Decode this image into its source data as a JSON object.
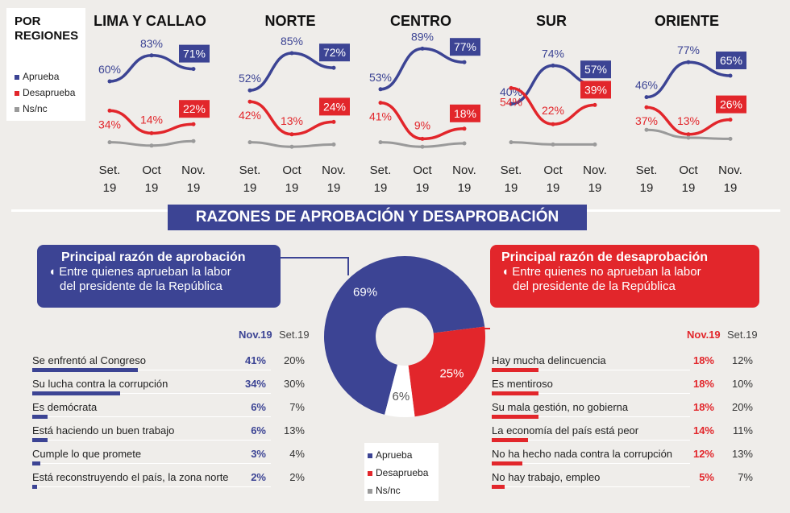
{
  "legend": {
    "title_line1": "POR",
    "title_line2": "REGIONES",
    "items": [
      {
        "label": "Aprueba",
        "color": "#3c4494"
      },
      {
        "label": "Desaprueba",
        "color": "#e2262b"
      },
      {
        "label": "Ns/nc",
        "color": "#9a9a9a"
      }
    ]
  },
  "x_labels": [
    {
      "line1": "Set.",
      "line2": "19"
    },
    {
      "line1": "Oct",
      "line2": "19"
    },
    {
      "line1": "Nov.",
      "line2": "19"
    }
  ],
  "chart_data": [
    {
      "type": "line",
      "title": "LIMA Y CALLAO",
      "categories": [
        "Set. 19",
        "Oct 19",
        "Nov. 19"
      ],
      "series": [
        {
          "name": "Aprueba",
          "values": [
            60,
            83,
            71
          ],
          "labels": [
            "60%",
            "83%",
            "71%"
          ]
        },
        {
          "name": "Desaprueba",
          "values": [
            34,
            14,
            22
          ],
          "labels": [
            "34%",
            "14%",
            "22%"
          ]
        },
        {
          "name": "Ns/nc",
          "values": [
            6,
            3,
            7
          ]
        }
      ]
    },
    {
      "type": "line",
      "title": "NORTE",
      "categories": [
        "Set. 19",
        "Oct 19",
        "Nov. 19"
      ],
      "series": [
        {
          "name": "Aprueba",
          "values": [
            52,
            85,
            72
          ],
          "labels": [
            "52%",
            "85%",
            "72%"
          ]
        },
        {
          "name": "Desaprueba",
          "values": [
            42,
            13,
            24
          ],
          "labels": [
            "42%",
            "13%",
            "24%"
          ]
        },
        {
          "name": "Ns/nc",
          "values": [
            6,
            2,
            4
          ]
        }
      ]
    },
    {
      "type": "line",
      "title": "CENTRO",
      "categories": [
        "Set. 19",
        "Oct 19",
        "Nov. 19"
      ],
      "series": [
        {
          "name": "Aprueba",
          "values": [
            53,
            89,
            77
          ],
          "labels": [
            "53%",
            "89%",
            "77%"
          ]
        },
        {
          "name": "Desaprueba",
          "values": [
            41,
            9,
            18
          ],
          "labels": [
            "41%",
            "9%",
            "18%"
          ]
        },
        {
          "name": "Ns/nc",
          "values": [
            6,
            2,
            5
          ]
        }
      ]
    },
    {
      "type": "line",
      "title": "SUR",
      "categories": [
        "Set. 19",
        "Oct 19",
        "Nov. 19"
      ],
      "series": [
        {
          "name": "Aprueba",
          "values": [
            40,
            74,
            57
          ],
          "labels": [
            "40%",
            "74%",
            "57%"
          ]
        },
        {
          "name": "Desaprueba",
          "values": [
            54,
            22,
            39
          ],
          "labels": [
            "54%",
            "22%",
            "39%"
          ]
        },
        {
          "name": "Ns/nc",
          "values": [
            6,
            4,
            4
          ]
        }
      ]
    },
    {
      "type": "line",
      "title": "ORIENTE",
      "categories": [
        "Set. 19",
        "Oct 19",
        "Nov. 19"
      ],
      "series": [
        {
          "name": "Aprueba",
          "values": [
            46,
            77,
            65
          ],
          "labels": [
            "46%",
            "77%",
            "65%"
          ]
        },
        {
          "name": "Desaprueba",
          "values": [
            37,
            13,
            26
          ],
          "labels": [
            "37%",
            "13%",
            "26%"
          ]
        },
        {
          "name": "Ns/nc",
          "values": [
            17,
            10,
            9
          ]
        }
      ]
    },
    {
      "type": "pie",
      "title": "",
      "slices": [
        {
          "name": "Aprueba",
          "value": 69,
          "label": "69%",
          "color": "#3c4494"
        },
        {
          "name": "Desaprueba",
          "value": 25,
          "label": "25%",
          "color": "#e2262b"
        },
        {
          "name": "Ns/nc",
          "value": 6,
          "label": "6%",
          "color": "#ffffff"
        }
      ]
    },
    {
      "type": "bar",
      "title": "Principal razón de aprobación",
      "series": [
        {
          "name": "Nov.19",
          "values": [
            41,
            34,
            6,
            6,
            3,
            2
          ]
        },
        {
          "name": "Set.19",
          "values": [
            20,
            30,
            7,
            13,
            4,
            2
          ]
        }
      ],
      "categories": [
        "Se enfrentó al Congreso",
        "Su lucha contra la corrupción",
        "Es demócrata",
        "Está haciendo un buen trabajo",
        "Cumple lo que promete",
        "Está reconstruyendo el país, la zona norte"
      ]
    },
    {
      "type": "bar",
      "title": "Principal razón de desaprobación",
      "series": [
        {
          "name": "Nov.19",
          "values": [
            18,
            18,
            18,
            14,
            12,
            5
          ]
        },
        {
          "name": "Set.19",
          "values": [
            12,
            10,
            20,
            11,
            13,
            7
          ]
        }
      ],
      "categories": [
        "Hay mucha delincuencia",
        "Es mentiroso",
        "Su mala gestión, no gobierna",
        "La economía del país está peor",
        "No ha hecho nada contra la corrupción",
        "No hay trabajo, empleo"
      ]
    }
  ],
  "banner": "RAZONES DE APROBACIÓN Y DESAPROBACIÓN",
  "approval": {
    "heading": "Principal razón de aprobación",
    "sub_line1": "Entre quienes aprueban la labor",
    "sub_line2": "del presidente de la República",
    "col_nov": "Nov.19",
    "col_set": "Set.19",
    "rows": [
      {
        "label": "Se enfrentó al Congreso",
        "nov": "41%",
        "set": "20%",
        "value": 41
      },
      {
        "label": "Su lucha contra la corrupción",
        "nov": "34%",
        "set": "30%",
        "value": 34
      },
      {
        "label": "Es demócrata",
        "nov": "6%",
        "set": "7%",
        "value": 6
      },
      {
        "label": "Está haciendo un buen trabajo",
        "nov": "6%",
        "set": "13%",
        "value": 6
      },
      {
        "label": "Cumple lo que promete",
        "nov": "3%",
        "set": "4%",
        "value": 3
      },
      {
        "label": "Está reconstruyendo el país, la zona norte",
        "nov": "2%",
        "set": "2%",
        "value": 2
      }
    ]
  },
  "disapproval": {
    "heading": "Principal razón de desaprobación",
    "sub_line1": "Entre quienes no aprueban la labor",
    "sub_line2": "del presidente de la República",
    "col_nov": "Nov.19",
    "col_set": "Set.19",
    "rows": [
      {
        "label": "Hay mucha delincuencia",
        "nov": "18%",
        "set": "12%",
        "value": 18
      },
      {
        "label": "Es mentiroso",
        "nov": "18%",
        "set": "10%",
        "value": 18
      },
      {
        "label": "Su mala gestión, no gobierna",
        "nov": "18%",
        "set": "20%",
        "value": 18
      },
      {
        "label": "La economía del país está peor",
        "nov": "14%",
        "set": "11%",
        "value": 14
      },
      {
        "label": "No ha hecho nada contra la corrupción",
        "nov": "12%",
        "set": "13%",
        "value": 12
      },
      {
        "label": "No hay trabajo, empleo",
        "nov": "5%",
        "set": "7%",
        "value": 5
      }
    ]
  },
  "pie_legend": [
    {
      "label": "Aprueba",
      "color": "#3c4494"
    },
    {
      "label": "Desaprueba",
      "color": "#e2262b"
    },
    {
      "label": "Ns/nc",
      "color": "#9a9a9a"
    }
  ],
  "colors": {
    "blue": "#3c4494",
    "red": "#e2262b",
    "gray": "#9a9a9a"
  }
}
